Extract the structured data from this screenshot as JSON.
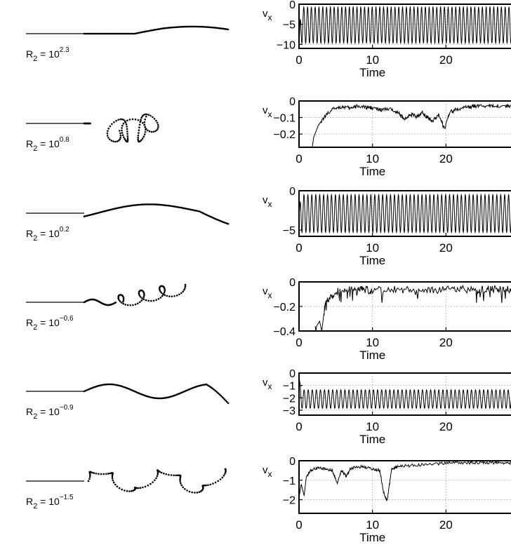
{
  "chart_data": [
    {
      "type": "line",
      "mode": "osc",
      "r2_base": "R",
      "r2_sub": "2",
      "r2_eq": " = 10",
      "r2_exp": "2.3",
      "ylabel": "v",
      "ylabel_sub": "x",
      "xlabel": "Time",
      "xlim": [
        0,
        30
      ],
      "ylim": [
        -11,
        0
      ],
      "yticks": [
        "0",
        "−5",
        "−10"
      ],
      "ytick_values": [
        0,
        -5,
        -10
      ],
      "xticks": [
        "0",
        "10",
        "20"
      ],
      "xtick_values": [
        0,
        10,
        20
      ],
      "series": [
        {
          "base": -5.2,
          "amplitude": 4.5,
          "cycles": 58,
          "start_value": -10
        }
      ],
      "shape": "sheet"
    },
    {
      "type": "line",
      "mode": "noisy",
      "r2_base": "R",
      "r2_sub": "2",
      "r2_eq": " = 10",
      "r2_exp": "0.8",
      "ylabel": "v",
      "ylabel_sub": "x",
      "xlabel": "Time",
      "xlim": [
        0,
        30
      ],
      "ylim": [
        -0.28,
        0
      ],
      "yticks": [
        "0",
        "−0.1",
        "−0.2"
      ],
      "ytick_values": [
        0,
        -0.1,
        -0.2
      ],
      "xticks": [
        "0",
        "10",
        "20"
      ],
      "xtick_values": [
        0,
        10,
        20
      ],
      "series": [
        {
          "x": [
            1.8,
            2.0,
            2.6,
            3.2,
            4.0,
            5.0,
            6.0,
            7.0,
            8.0,
            9.0,
            10.0,
            11.0,
            12.0,
            13.0,
            13.8,
            14.5,
            15.2,
            16.0,
            16.8,
            17.5,
            18.2,
            19.0,
            19.8,
            20.5,
            21.5,
            22.5,
            23.5,
            24.0
          ],
          "y": [
            -0.28,
            -0.22,
            -0.15,
            -0.11,
            -0.07,
            -0.04,
            -0.035,
            -0.045,
            -0.03,
            -0.04,
            -0.04,
            -0.055,
            -0.05,
            -0.055,
            -0.085,
            -0.11,
            -0.08,
            -0.095,
            -0.07,
            -0.1,
            -0.12,
            -0.08,
            -0.17,
            -0.07,
            -0.05,
            -0.04,
            -0.035,
            -0.03
          ]
        }
      ],
      "noise": 0.012,
      "shape": "folded"
    },
    {
      "type": "line",
      "mode": "osc",
      "r2_base": "R",
      "r2_sub": "2",
      "r2_eq": " = 10",
      "r2_exp": "0.2",
      "ylabel": "v",
      "ylabel_sub": "x",
      "xlabel": "Time",
      "xlim": [
        0,
        30
      ],
      "ylim": [
        -5.8,
        0
      ],
      "yticks": [
        "0",
        "−5"
      ],
      "ytick_values": [
        0,
        -5
      ],
      "xticks": [
        "0",
        "10",
        "20"
      ],
      "xtick_values": [
        0,
        10,
        20
      ],
      "series": [
        {
          "base": -2.9,
          "amplitude": 2.4,
          "cycles": 56,
          "start_value": -3
        }
      ],
      "shape": "wavy"
    },
    {
      "type": "line",
      "mode": "noisy",
      "r2_base": "R",
      "r2_sub": "2",
      "r2_eq": " = 10",
      "r2_exp": "−0.6",
      "ylabel": "v",
      "ylabel_sub": "x",
      "xlabel": "Time",
      "xlim": [
        0,
        30
      ],
      "ylim": [
        -0.4,
        0
      ],
      "yticks": [
        "0",
        "−0.2",
        "−0.4"
      ],
      "ytick_values": [
        0,
        -0.2,
        -0.4
      ],
      "xticks": [
        "0",
        "10",
        "20"
      ],
      "xtick_values": [
        0,
        10,
        20
      ],
      "series": [
        {
          "x": [
            2.2,
            2.3,
            2.4,
            2.8,
            3.1,
            3.5,
            4.0,
            5.0,
            6.0,
            7.0,
            8.0,
            9.0,
            10.0,
            12.0,
            14.0,
            16.0,
            18.0,
            20.0,
            22.0,
            24.0
          ],
          "y": [
            -0.36,
            -0.4,
            -0.36,
            -0.32,
            -0.4,
            -0.2,
            -0.14,
            -0.08,
            -0.07,
            -0.06,
            -0.065,
            -0.06,
            -0.07,
            -0.06,
            -0.065,
            -0.06,
            -0.07,
            -0.06,
            -0.055,
            -0.06
          ]
        }
      ],
      "noise": 0.03,
      "spikes": 0.1,
      "shape": "tangle"
    },
    {
      "type": "line",
      "mode": "osc",
      "r2_base": "R",
      "r2_sub": "2",
      "r2_eq": " = 10",
      "r2_exp": "−0.9",
      "ylabel": "v",
      "ylabel_sub": "x",
      "xlabel": "Time",
      "xlim": [
        0,
        30
      ],
      "ylim": [
        -3.4,
        0
      ],
      "yticks": [
        "0",
        "−1",
        "−2",
        "−3"
      ],
      "ytick_values": [
        0,
        -1,
        -2,
        -3
      ],
      "xticks": [
        "0",
        "10",
        "20"
      ],
      "xtick_values": [
        0,
        10,
        20
      ],
      "series": [
        {
          "base": -2.1,
          "amplitude": 0.75,
          "cycles": 54,
          "start_value": -0.2
        }
      ],
      "shape": "meander"
    },
    {
      "type": "line",
      "mode": "noisy",
      "r2_base": "R",
      "r2_sub": "2",
      "r2_eq": " = 10",
      "r2_exp": "−1.5",
      "ylabel": "v",
      "ylabel_sub": "x",
      "xlabel": "Time",
      "xlim": [
        0,
        30
      ],
      "ylim": [
        -2.7,
        0
      ],
      "yticks": [
        "0",
        "−1",
        "−2"
      ],
      "ytick_values": [
        0,
        -1,
        -2
      ],
      "xticks": [
        "0",
        "10",
        "20"
      ],
      "xtick_values": [
        0,
        10,
        20
      ],
      "series": [
        {
          "x": [
            0,
            0.3,
            0.7,
            1.0,
            1.6,
            2.5,
            3.5,
            4.5,
            5.2,
            5.8,
            6.4,
            7.0,
            8.0,
            9.0,
            10.0,
            11.0,
            11.5,
            12.0,
            12.6,
            13.5,
            15.0,
            17.0,
            19.0,
            21.0,
            23.0,
            24.0
          ],
          "y": [
            -1.9,
            -1.2,
            -1.8,
            -0.8,
            -0.5,
            -0.35,
            -0.4,
            -0.5,
            -1.1,
            -0.5,
            -0.8,
            -0.4,
            -0.3,
            -0.35,
            -0.4,
            -0.5,
            -1.6,
            -2.1,
            -0.4,
            -0.3,
            -0.25,
            -0.2,
            -0.15,
            -0.1,
            -0.1,
            -0.1
          ]
        }
      ],
      "noise": 0.08,
      "shape": "loops"
    }
  ]
}
